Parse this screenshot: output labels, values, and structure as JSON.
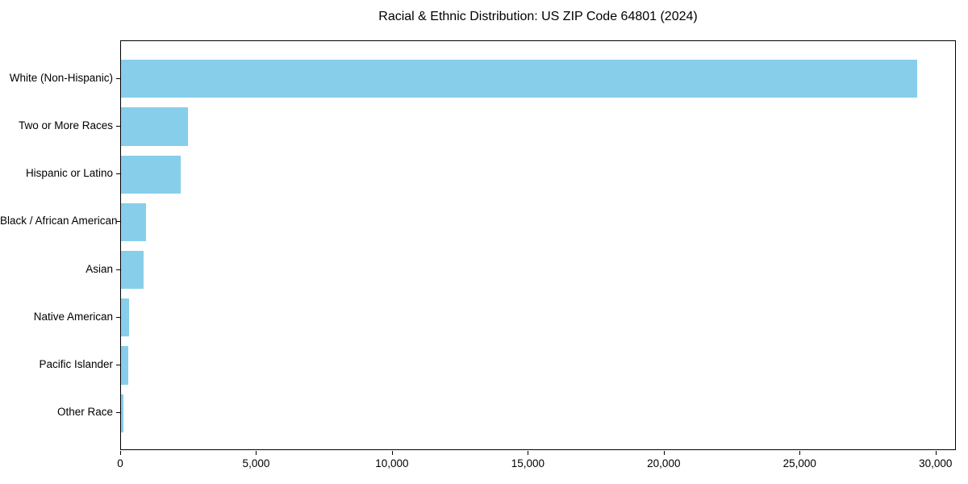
{
  "title": "Racial & Ethnic Distribution: US ZIP Code 64801 (2024)",
  "colors": {
    "bar": "#87CEEB",
    "axis": "#000000",
    "text": "#000000",
    "background": "#FFFFFF"
  },
  "chart_data": {
    "type": "bar",
    "orientation": "horizontal",
    "title": "Racial & Ethnic Distribution: US ZIP Code 64801 (2024)",
    "xlabel": "",
    "ylabel": "",
    "categories": [
      "White (Non-Hispanic)",
      "Two or More Races",
      "Hispanic or Latino",
      "Black / African American",
      "Asian",
      "Native American",
      "Pacific Islander",
      "Other Race"
    ],
    "values": [
      29300,
      2450,
      2200,
      920,
      830,
      300,
      270,
      80
    ],
    "xlim": [
      0,
      30750
    ],
    "xticks": [
      0,
      5000,
      10000,
      15000,
      20000,
      25000,
      30000
    ],
    "xtick_labels": [
      "0",
      "5,000",
      "10,000",
      "15,000",
      "20,000",
      "25,000",
      "30,000"
    ],
    "bar_color": "#87CEEB",
    "grid": false,
    "legend": null
  }
}
